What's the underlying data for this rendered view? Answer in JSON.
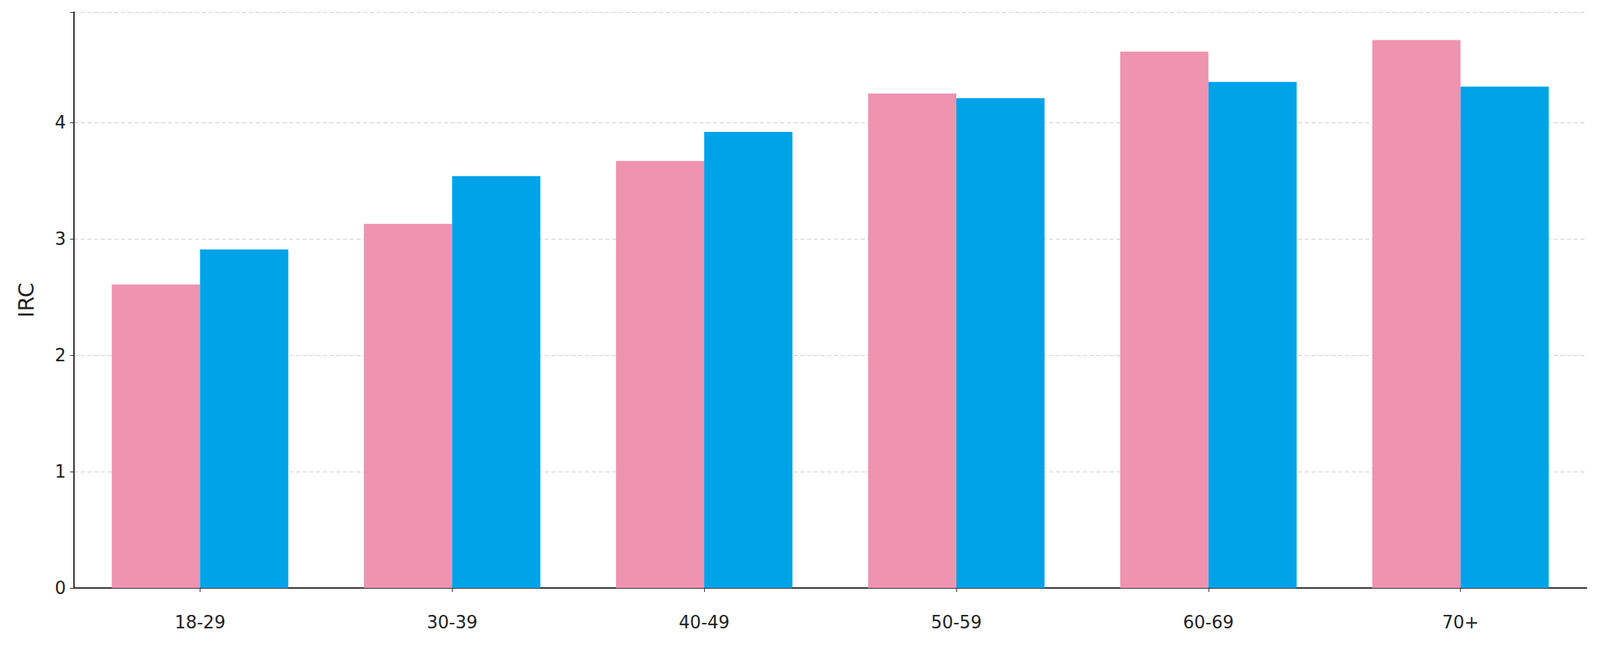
{
  "chart_data": {
    "type": "bar",
    "ylabel": "IRC",
    "categories": [
      "18-29",
      "30-39",
      "40-49",
      "50-59",
      "60-69",
      "70+"
    ],
    "series": [
      {
        "color": "#ee93b0",
        "values": [
          2.61,
          3.13,
          3.67,
          4.25,
          4.61,
          4.71
        ]
      },
      {
        "color": "#00a3e8",
        "values": [
          2.91,
          3.54,
          3.92,
          4.21,
          4.35,
          4.31
        ]
      }
    ],
    "ylim": [
      0,
      4.95
    ],
    "yticks": [
      0,
      1,
      2,
      3,
      4
    ],
    "grid": true
  }
}
